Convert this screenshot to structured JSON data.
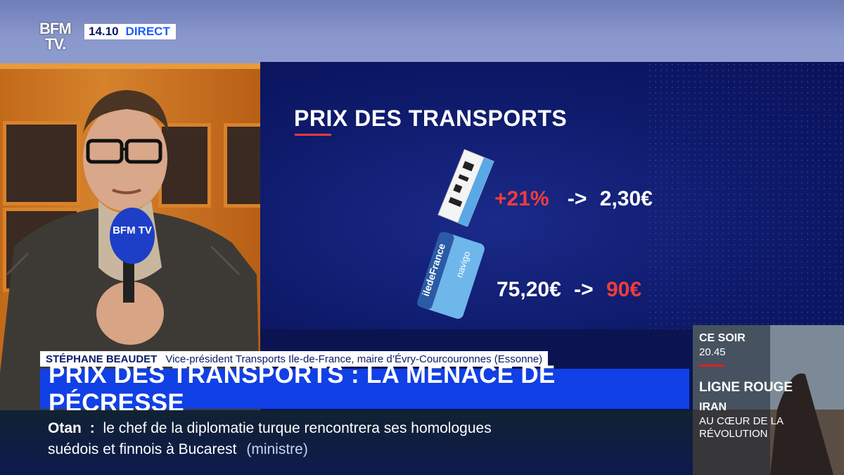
{
  "channel": {
    "logo_line1": "BFM",
    "logo_line2": "TV.",
    "time": "14.10",
    "live_label": "DIRECT"
  },
  "graphic": {
    "title": "PRIX DES TRANSPORTS",
    "ticket_row": {
      "change": "+21%",
      "arrow": "->",
      "new_price": "2,30€"
    },
    "pass_row": {
      "old_price": "75,20€",
      "arrow": "->",
      "new_price": "90€"
    },
    "ticket_icon": "metro-ticket-icon",
    "pass_icon": "navigo-card-icon",
    "card_text": "iledeFrance",
    "card_brand": "navigo"
  },
  "mic_label": "BFM TV",
  "guest": {
    "name": "STÉPHANE BEAUDET",
    "role": "Vice-président Transports Ile-de-France, maire d’Évry-Courcouronnes (Essonne)"
  },
  "headline": "PRIX DES TRANSPORTS : LA MENACE DE PÉCRESSE",
  "ticker": {
    "keyword": "Otan",
    "separator": ":",
    "line1": "le chef de la diplomatie turque rencontrera ses homologues",
    "line2": "suédois et finnois à Bucarest",
    "source": "(ministre)"
  },
  "promo": {
    "tonight": "CE SOIR",
    "time": "20.45",
    "show": "LIGNE ROUGE",
    "subject": "IRAN",
    "subtitle_line1": "AU CŒUR DE LA",
    "subtitle_line2": "RÉVOLUTION"
  },
  "colors": {
    "accent_red": "#f03c3c",
    "headline_blue": "#1040e6",
    "navy": "#0a1a66"
  }
}
